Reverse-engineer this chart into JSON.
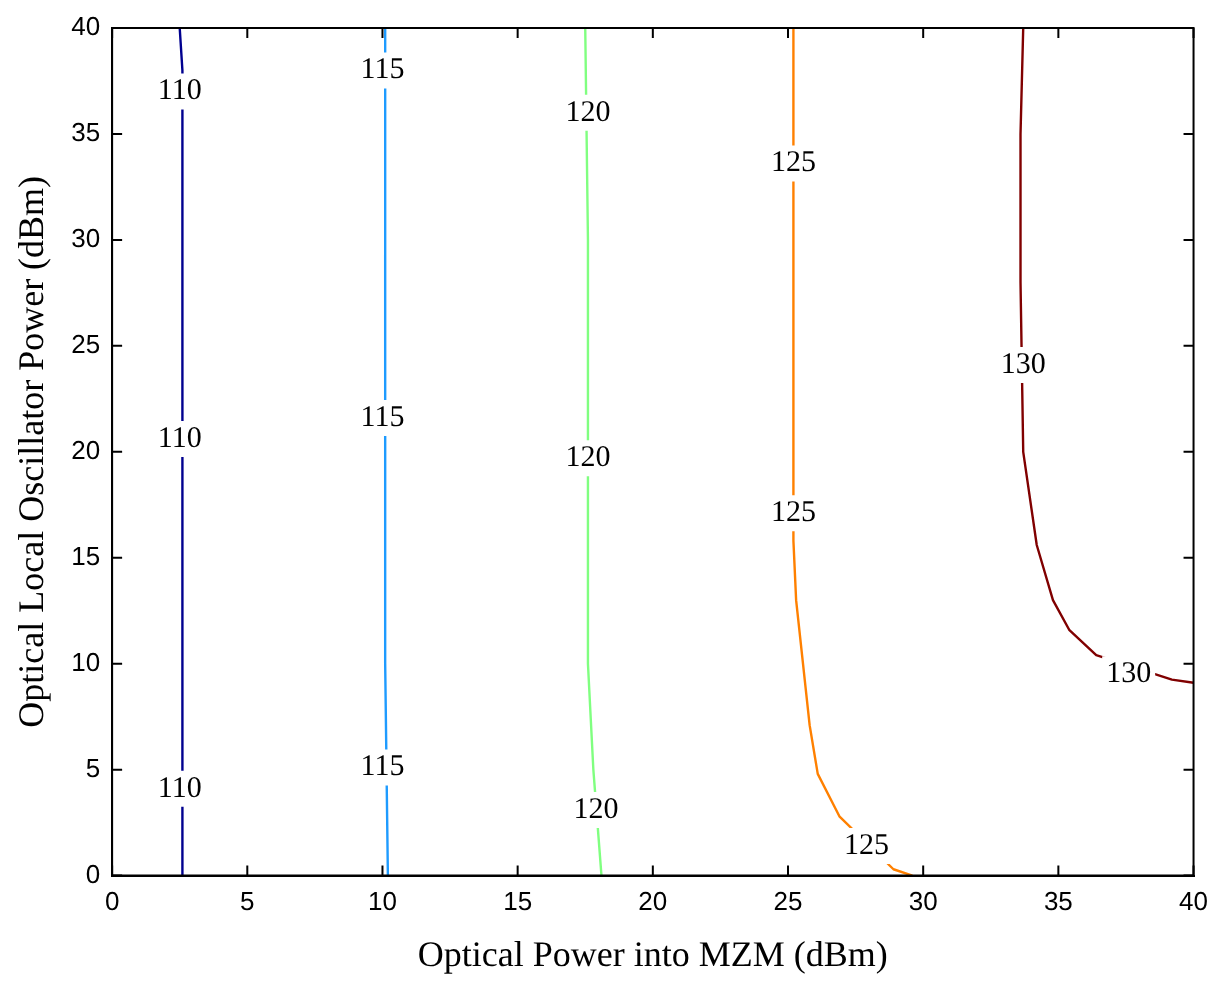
{
  "chart_data": {
    "type": "line",
    "xlabel": "Optical Power into MZM (dBm)",
    "ylabel": "Optical Local Oscillator Power (dBm)",
    "xlim": [
      0,
      40
    ],
    "ylim": [
      0,
      40
    ],
    "xticks": [
      0,
      5,
      10,
      15,
      20,
      25,
      30,
      35,
      40
    ],
    "yticks": [
      0,
      5,
      10,
      15,
      20,
      25,
      30,
      35,
      40
    ],
    "grid": false,
    "marker": "none",
    "line_style": "solid",
    "series": [
      {
        "color": "#00008f",
        "x": [
          2.6,
          2.6,
          2.5
        ],
        "values": [
          0,
          38,
          40
        ]
      },
      {
        "color": "#1e9bff",
        "x": [
          10.2,
          10.1,
          10.1,
          10.1
        ],
        "values": [
          0,
          10,
          30,
          40
        ]
      },
      {
        "color": "#80ff80",
        "x": [
          18.1,
          17.8,
          17.6,
          17.6,
          17.5
        ],
        "values": [
          0,
          5,
          10,
          30,
          40
        ]
      },
      {
        "color": "#ff8000",
        "x": [
          29.6,
          28.9,
          26.9,
          26.1,
          25.8,
          25.3,
          25.2,
          25.2
        ],
        "values": [
          0,
          0.3,
          2.8,
          4.8,
          7.1,
          13,
          15.8,
          40
        ]
      },
      {
        "color": "#800000",
        "x": [
          40,
          39.2,
          36.4,
          35.4,
          34.8,
          34.2,
          33.7,
          33.6,
          33.6,
          33.7
        ],
        "values": [
          9.1,
          9.25,
          10.4,
          11.6,
          13,
          15.6,
          20,
          28,
          35,
          40
        ]
      }
    ],
    "annotations": [
      {
        "text": "110",
        "x": 2.5,
        "y": 37
      },
      {
        "text": "110",
        "x": 2.5,
        "y": 20.6
      },
      {
        "text": "110",
        "x": 2.5,
        "y": 4.1
      },
      {
        "text": "115",
        "x": 10,
        "y": 38
      },
      {
        "text": "115",
        "x": 10,
        "y": 21.6
      },
      {
        "text": "115",
        "x": 10,
        "y": 5.1
      },
      {
        "text": "120",
        "x": 17.6,
        "y": 36
      },
      {
        "text": "120",
        "x": 17.6,
        "y": 19.7
      },
      {
        "text": "120",
        "x": 17.9,
        "y": 3.1
      },
      {
        "text": "125",
        "x": 25.2,
        "y": 33.6
      },
      {
        "text": "125",
        "x": 25.2,
        "y": 17.1
      },
      {
        "text": "125",
        "x": 27.9,
        "y": 1.4
      },
      {
        "text": "130",
        "x": 33.7,
        "y": 24.1
      },
      {
        "text": "130",
        "x": 37.6,
        "y": 9.5
      }
    ]
  }
}
